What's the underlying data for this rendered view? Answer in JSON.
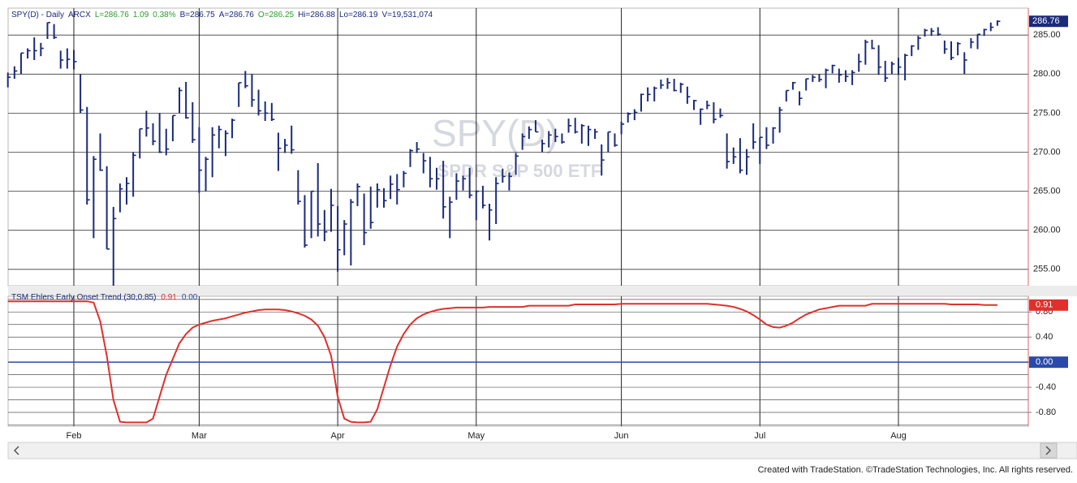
{
  "chart_data": [
    {
      "type": "ohlc",
      "header": [
        {
          "text": "SPY(D) - Daily",
          "color": "#1b2a7a"
        },
        {
          "text": "ARCX",
          "color": "#1b2a7a"
        },
        {
          "text": "L=286.76",
          "color": "#2e9a2e"
        },
        {
          "text": "1.09",
          "color": "#2e9a2e"
        },
        {
          "text": "0.38%",
          "color": "#2e9a2e"
        },
        {
          "text": "B=286.75",
          "color": "#1b2a7a"
        },
        {
          "text": "A=286.76",
          "color": "#1b2a7a"
        },
        {
          "text": "O=286.25",
          "color": "#2e9a2e"
        },
        {
          "text": "Hi=286.88",
          "color": "#1b2a7a"
        },
        {
          "text": "Lo=286.19",
          "color": "#1b2a7a"
        },
        {
          "text": "V=19,531,074",
          "color": "#1b2a7a"
        }
      ],
      "watermark": [
        "SPY(D)",
        "SPDR S&P 500 ETF"
      ],
      "color": "#1b2a7a",
      "categories": [
        null,
        null,
        null,
        null,
        null,
        null,
        null,
        null,
        null,
        null,
        "Feb",
        null,
        null,
        null,
        null,
        null,
        null,
        null,
        null,
        null,
        null,
        null,
        null,
        null,
        null,
        null,
        null,
        null,
        null,
        "Mar",
        null,
        null,
        null,
        null,
        null,
        null,
        null,
        null,
        null,
        null,
        null,
        null,
        null,
        null,
        null,
        null,
        null,
        null,
        null,
        null,
        "Apr",
        null,
        null,
        null,
        null,
        null,
        null,
        null,
        null,
        null,
        null,
        null,
        null,
        null,
        null,
        null,
        null,
        null,
        null,
        null,
        null,
        "May",
        null,
        null,
        null,
        null,
        null,
        null,
        null,
        null,
        null,
        null,
        null,
        null,
        null,
        null,
        null,
        null,
        null,
        null,
        null,
        null,
        null,
        "Jun",
        null,
        null,
        null,
        null,
        null,
        null,
        null,
        null,
        null,
        null,
        null,
        null,
        null,
        null,
        null,
        null,
        null,
        null,
        null,
        null,
        "Jul",
        null,
        null,
        null,
        null,
        null,
        null,
        null,
        null,
        null,
        null,
        null,
        null,
        null,
        null,
        null,
        null,
        null,
        null,
        null,
        null,
        "Aug",
        null,
        null,
        null,
        null,
        null,
        null,
        null,
        null,
        null,
        null,
        null,
        null,
        null,
        null,
        null
      ],
      "high": [
        280.2,
        281.0,
        282.7,
        283.3,
        284.7,
        284.0,
        286.6,
        286.4,
        283.0,
        283.3,
        283.1,
        280.0,
        275.8,
        269.5,
        272.4,
        268.2,
        263.0,
        266.0,
        266.8,
        270.0,
        273.0,
        275.3,
        273.7,
        275.0,
        273.0,
        274.7,
        278.3,
        279.0,
        276.4,
        273.2,
        269.4,
        273.2,
        273.4,
        272.8,
        274.3,
        278.9,
        280.4,
        280.0,
        278.0,
        276.5,
        276.3,
        272.5,
        271.7,
        273.4,
        267.7,
        264.5,
        265.0,
        268.6,
        262.6,
        265.3,
        263.1,
        261.3,
        264.0,
        266.0,
        264.7,
        265.6,
        266.0,
        265.4,
        267.0,
        267.2,
        267.6,
        270.4,
        271.3,
        269.9,
        269.4,
        268.0,
        268.9,
        264.3,
        267.3,
        267.0,
        268.0,
        265.1,
        265.7,
        263.4,
        266.8,
        267.9,
        267.4,
        269.9,
        272.4,
        273.3,
        274.1,
        271.6,
        272.7,
        273.0,
        272.4,
        274.3,
        274.4,
        273.6,
        273.4,
        273.0,
        271.0,
        272.6,
        272.4,
        273.9,
        275.1,
        275.5,
        277.5,
        278.3,
        278.4,
        279.3,
        279.5,
        279.4,
        278.9,
        278.4,
        276.7,
        275.6,
        276.6,
        276.4,
        275.6,
        272.4,
        270.6,
        271.8,
        270.4,
        273.7,
        271.9,
        273.2,
        273.2,
        275.8,
        277.9,
        279.0,
        277.8,
        279.4,
        279.9,
        280.0,
        280.7,
        281.2,
        280.7,
        280.5,
        280.5,
        282.6,
        284.4,
        284.4,
        283.7,
        281.7,
        281.6,
        282.1,
        282.6,
        283.7,
        284.9,
        285.8,
        285.9,
        286.0,
        284.3,
        284.2,
        284.1,
        282.8,
        284.6,
        285.1,
        285.8,
        286.6,
        286.88
      ],
      "low": [
        278.3,
        279.4,
        280.0,
        282.0,
        281.8,
        282.3,
        284.5,
        284.5,
        280.7,
        280.7,
        280.6,
        275.0,
        263.3,
        259.0,
        267.6,
        257.6,
        252.9,
        262.3,
        263.3,
        264.3,
        269.2,
        272.0,
        270.9,
        269.9,
        269.6,
        271.4,
        275.0,
        274.3,
        271.2,
        264.8,
        265.0,
        266.8,
        270.5,
        269.5,
        271.8,
        275.8,
        278.2,
        275.8,
        274.7,
        274.0,
        274.0,
        267.6,
        269.9,
        269.8,
        263.3,
        257.8,
        259.0,
        259.2,
        258.6,
        259.8,
        254.7,
        256.8,
        255.5,
        263.1,
        258.1,
        260.2,
        262.9,
        262.9,
        264.0,
        263.3,
        265.5,
        268.1,
        269.9,
        267.3,
        265.5,
        265.2,
        261.5,
        259.0,
        263.9,
        265.1,
        264.1,
        261.3,
        262.8,
        258.7,
        260.8,
        266.1,
        265.1,
        267.1,
        270.3,
        271.7,
        272.6,
        270.0,
        270.6,
        271.3,
        271.1,
        272.5,
        272.4,
        271.1,
        270.8,
        271.7,
        267.0,
        270.0,
        270.7,
        272.3,
        273.8,
        274.1,
        275.2,
        276.5,
        276.5,
        278.1,
        278.1,
        277.8,
        277.6,
        276.2,
        275.4,
        273.5,
        275.5,
        273.7,
        274.4,
        267.9,
        268.5,
        267.3,
        267.1,
        270.4,
        268.5,
        270.4,
        271.1,
        272.5,
        276.5,
        278.0,
        276.0,
        277.9,
        279.0,
        279.0,
        278.2,
        280.1,
        278.9,
        279.0,
        278.6,
        280.3,
        281.2,
        283.2,
        279.9,
        279.0,
        280.0,
        279.9,
        279.2,
        282.3,
        283.1,
        284.8,
        284.9,
        284.9,
        282.6,
        281.8,
        282.4,
        280.0,
        283.3,
        283.2,
        284.9,
        285.5,
        286.19
      ],
      "close": [
        279.6,
        280.4,
        282.7,
        283.0,
        283.0,
        283.3,
        286.6,
        284.7,
        281.8,
        281.9,
        281.6,
        275.4,
        263.9,
        269.1,
        267.7,
        257.6,
        261.5,
        265.3,
        266.0,
        269.6,
        273.0,
        273.1,
        271.4,
        270.0,
        270.4,
        274.7,
        277.9,
        274.4,
        271.6,
        267.7,
        269.1,
        272.2,
        272.9,
        272.4,
        274.1,
        278.9,
        278.5,
        276.7,
        275.3,
        275.0,
        274.2,
        270.5,
        270.9,
        270.3,
        263.7,
        258.1,
        265.0,
        260.8,
        259.8,
        263.2,
        257.5,
        260.8,
        263.6,
        265.6,
        259.7,
        261.0,
        265.2,
        263.8,
        265.9,
        265.2,
        267.3,
        270.2,
        270.4,
        268.9,
        266.6,
        266.6,
        263.0,
        263.6,
        266.3,
        266.6,
        264.5,
        265.0,
        263.2,
        262.6,
        266.0,
        266.9,
        266.9,
        269.5,
        272.0,
        272.9,
        272.6,
        271.1,
        272.2,
        272.0,
        271.3,
        273.4,
        272.6,
        273.4,
        272.9,
        272.6,
        269.0,
        272.6,
        270.9,
        273.6,
        274.9,
        275.1,
        277.4,
        277.4,
        278.2,
        278.6,
        278.9,
        277.9,
        278.7,
        277.1,
        276.6,
        275.5,
        276.0,
        274.2,
        274.7,
        268.8,
        269.4,
        267.7,
        269.4,
        271.3,
        271.9,
        270.9,
        273.1,
        275.4,
        277.9,
        278.9,
        276.9,
        279.4,
        279.6,
        279.3,
        280.5,
        281.1,
        279.9,
        279.7,
        280.2,
        281.6,
        284.1,
        283.3,
        280.9,
        279.5,
        281.3,
        280.9,
        282.4,
        283.6,
        284.6,
        285.6,
        285.5,
        285.1,
        283.2,
        282.1,
        283.9,
        281.8,
        284.1,
        285.1,
        285.7,
        286.0,
        286.76
      ],
      "ylim": [
        252.9,
        288.45
      ],
      "yticks": [
        {
          "value": 285,
          "label": "285.00"
        },
        {
          "value": 280,
          "label": "280.00"
        },
        {
          "value": 275,
          "label": "275.00"
        },
        {
          "value": 270,
          "label": "270.00"
        },
        {
          "value": 265,
          "label": "265.00"
        },
        {
          "value": 260,
          "label": "260.00"
        },
        {
          "value": 255,
          "label": "255.00"
        }
      ],
      "grid": true
    },
    {
      "type": "line",
      "title": "TSM Ehlers Early Onset Trend (30,0.85)",
      "color": "#e0302c",
      "values": [
        0.97,
        0.97,
        0.97,
        0.97,
        0.97,
        0.97,
        0.97,
        0.97,
        0.97,
        0.97,
        0.97,
        0.97,
        0.97,
        0.95,
        0.65,
        0.1,
        -0.6,
        -0.95,
        -0.96,
        -0.96,
        -0.96,
        -0.96,
        -0.9,
        -0.55,
        -0.2,
        0.05,
        0.3,
        0.45,
        0.55,
        0.6,
        0.63,
        0.66,
        0.68,
        0.7,
        0.73,
        0.76,
        0.79,
        0.81,
        0.83,
        0.84,
        0.84,
        0.84,
        0.83,
        0.81,
        0.78,
        0.74,
        0.68,
        0.58,
        0.4,
        0.1,
        -0.55,
        -0.9,
        -0.95,
        -0.96,
        -0.96,
        -0.95,
        -0.75,
        -0.4,
        -0.05,
        0.25,
        0.45,
        0.6,
        0.7,
        0.76,
        0.8,
        0.83,
        0.85,
        0.86,
        0.87,
        0.87,
        0.87,
        0.87,
        0.87,
        0.88,
        0.88,
        0.88,
        0.88,
        0.88,
        0.88,
        0.9,
        0.9,
        0.9,
        0.9,
        0.9,
        0.9,
        0.9,
        0.92,
        0.92,
        0.92,
        0.92,
        0.92,
        0.92,
        0.92,
        0.93,
        0.93,
        0.93,
        0.93,
        0.93,
        0.93,
        0.93,
        0.93,
        0.93,
        0.93,
        0.93,
        0.93,
        0.93,
        0.93,
        0.92,
        0.91,
        0.9,
        0.88,
        0.85,
        0.81,
        0.75,
        0.68,
        0.6,
        0.56,
        0.55,
        0.58,
        0.63,
        0.7,
        0.76,
        0.8,
        0.84,
        0.86,
        0.88,
        0.9,
        0.9,
        0.9,
        0.9,
        0.9,
        0.93,
        0.93,
        0.93,
        0.93,
        0.93,
        0.93,
        0.93,
        0.93,
        0.93,
        0.93,
        0.93,
        0.93,
        0.92,
        0.92,
        0.92,
        0.92,
        0.92,
        0.91,
        0.91,
        0.91
      ],
      "zero_line": {
        "value": 0,
        "label": "0.00",
        "color": "#2a4aa8"
      },
      "ylim": [
        -1.02,
        1.05
      ],
      "yticks": [
        {
          "value": 0.8,
          "label": "0.80"
        },
        {
          "value": 0.4,
          "label": "0.40"
        },
        {
          "value": 0,
          "label": "0.00"
        },
        {
          "value": -0.4,
          "label": "-0.40"
        },
        {
          "value": -0.8,
          "label": "-0.80"
        }
      ],
      "yminorticks": [
        1,
        0.8,
        0.6,
        0.4,
        0.2,
        0,
        -0.2,
        -0.4,
        -0.6,
        -0.8,
        -1
      ],
      "grid": true
    }
  ],
  "footer": "Created with TradeStation. ©TradeStation Technologies, Inc. All rights reserved."
}
